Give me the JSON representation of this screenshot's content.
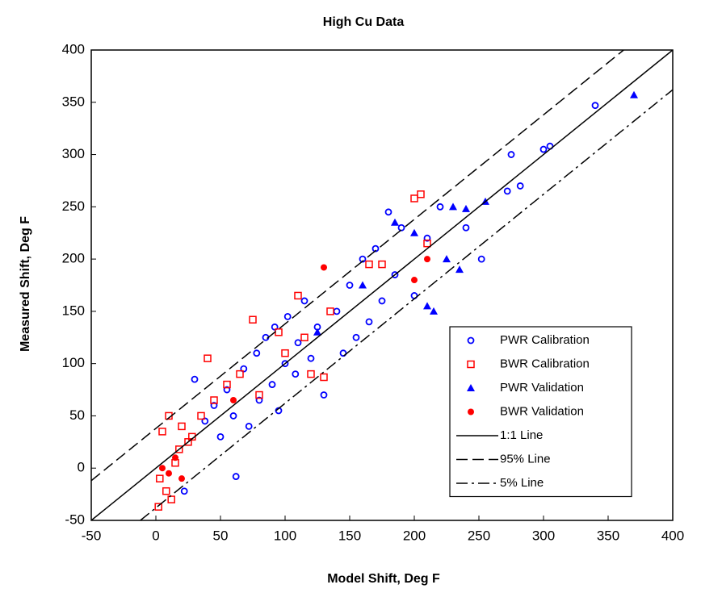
{
  "chart_data": {
    "type": "scatter",
    "title": "High Cu Data",
    "xlabel": "Model Shift, Deg F",
    "ylabel": "Measured Shift, Deg F",
    "xlim": [
      -50,
      400
    ],
    "ylim": [
      -50,
      400
    ],
    "xticks": [
      -50,
      0,
      50,
      100,
      150,
      200,
      250,
      300,
      350,
      400
    ],
    "yticks": [
      -50,
      0,
      50,
      100,
      150,
      200,
      250,
      300,
      350,
      400
    ],
    "grid": false,
    "legend": "lower right",
    "series": [
      {
        "name": "PWR Calibration",
        "color": "#0000ff",
        "marker": "open-circle",
        "x": [
          22,
          30,
          38,
          45,
          50,
          55,
          60,
          62,
          68,
          72,
          78,
          80,
          85,
          90,
          92,
          95,
          100,
          102,
          108,
          110,
          115,
          120,
          125,
          130,
          140,
          145,
          150,
          155,
          160,
          165,
          170,
          175,
          180,
          185,
          190,
          200,
          210,
          220,
          240,
          252,
          272,
          275,
          282,
          300,
          305,
          340
        ],
        "values": [
          -22,
          85,
          45,
          60,
          30,
          75,
          50,
          -8,
          95,
          40,
          110,
          65,
          125,
          80,
          135,
          55,
          100,
          145,
          90,
          120,
          160,
          105,
          135,
          70,
          150,
          110,
          175,
          125,
          200,
          140,
          210,
          160,
          245,
          185,
          230,
          165,
          220,
          250,
          230,
          200,
          265,
          300,
          270,
          305,
          308,
          347
        ]
      },
      {
        "name": "BWR Calibration",
        "color": "#ff0000",
        "marker": "open-square",
        "x": [
          2,
          3,
          5,
          8,
          10,
          12,
          15,
          18,
          20,
          25,
          28,
          35,
          40,
          45,
          55,
          65,
          75,
          80,
          95,
          100,
          110,
          115,
          120,
          130,
          135,
          165,
          175,
          200,
          205,
          210
        ],
        "values": [
          -37,
          -10,
          35,
          -22,
          50,
          -30,
          5,
          18,
          40,
          25,
          30,
          50,
          105,
          65,
          80,
          90,
          142,
          70,
          130,
          110,
          165,
          125,
          90,
          87,
          150,
          195,
          195,
          258,
          262,
          215
        ]
      },
      {
        "name": "PWR Validation",
        "color": "#0000ff",
        "marker": "triangle",
        "x": [
          125,
          160,
          185,
          200,
          210,
          225,
          230,
          240,
          255,
          370,
          235,
          215
        ],
        "values": [
          130,
          175,
          235,
          225,
          155,
          200,
          250,
          248,
          255,
          357,
          190,
          150
        ]
      },
      {
        "name": "BWR Validation",
        "color": "#ff0000",
        "marker": "circle",
        "x": [
          5,
          10,
          15,
          20,
          130,
          200,
          210,
          60
        ],
        "values": [
          0,
          -5,
          10,
          -10,
          192,
          180,
          200,
          65
        ]
      },
      {
        "name": "1:1 Line",
        "color": "#000000",
        "line_style": "solid",
        "x": [
          -50,
          400
        ],
        "values": [
          -50,
          400
        ]
      },
      {
        "name": "95% Line",
        "color": "#000000",
        "line_style": "dashed",
        "x": [
          -50,
          362
        ],
        "values": [
          -12,
          400
        ]
      },
      {
        "name": "5% Line",
        "color": "#000000",
        "line_style": "dashdot",
        "x": [
          -12,
          400
        ],
        "values": [
          -50,
          362
        ]
      }
    ]
  }
}
